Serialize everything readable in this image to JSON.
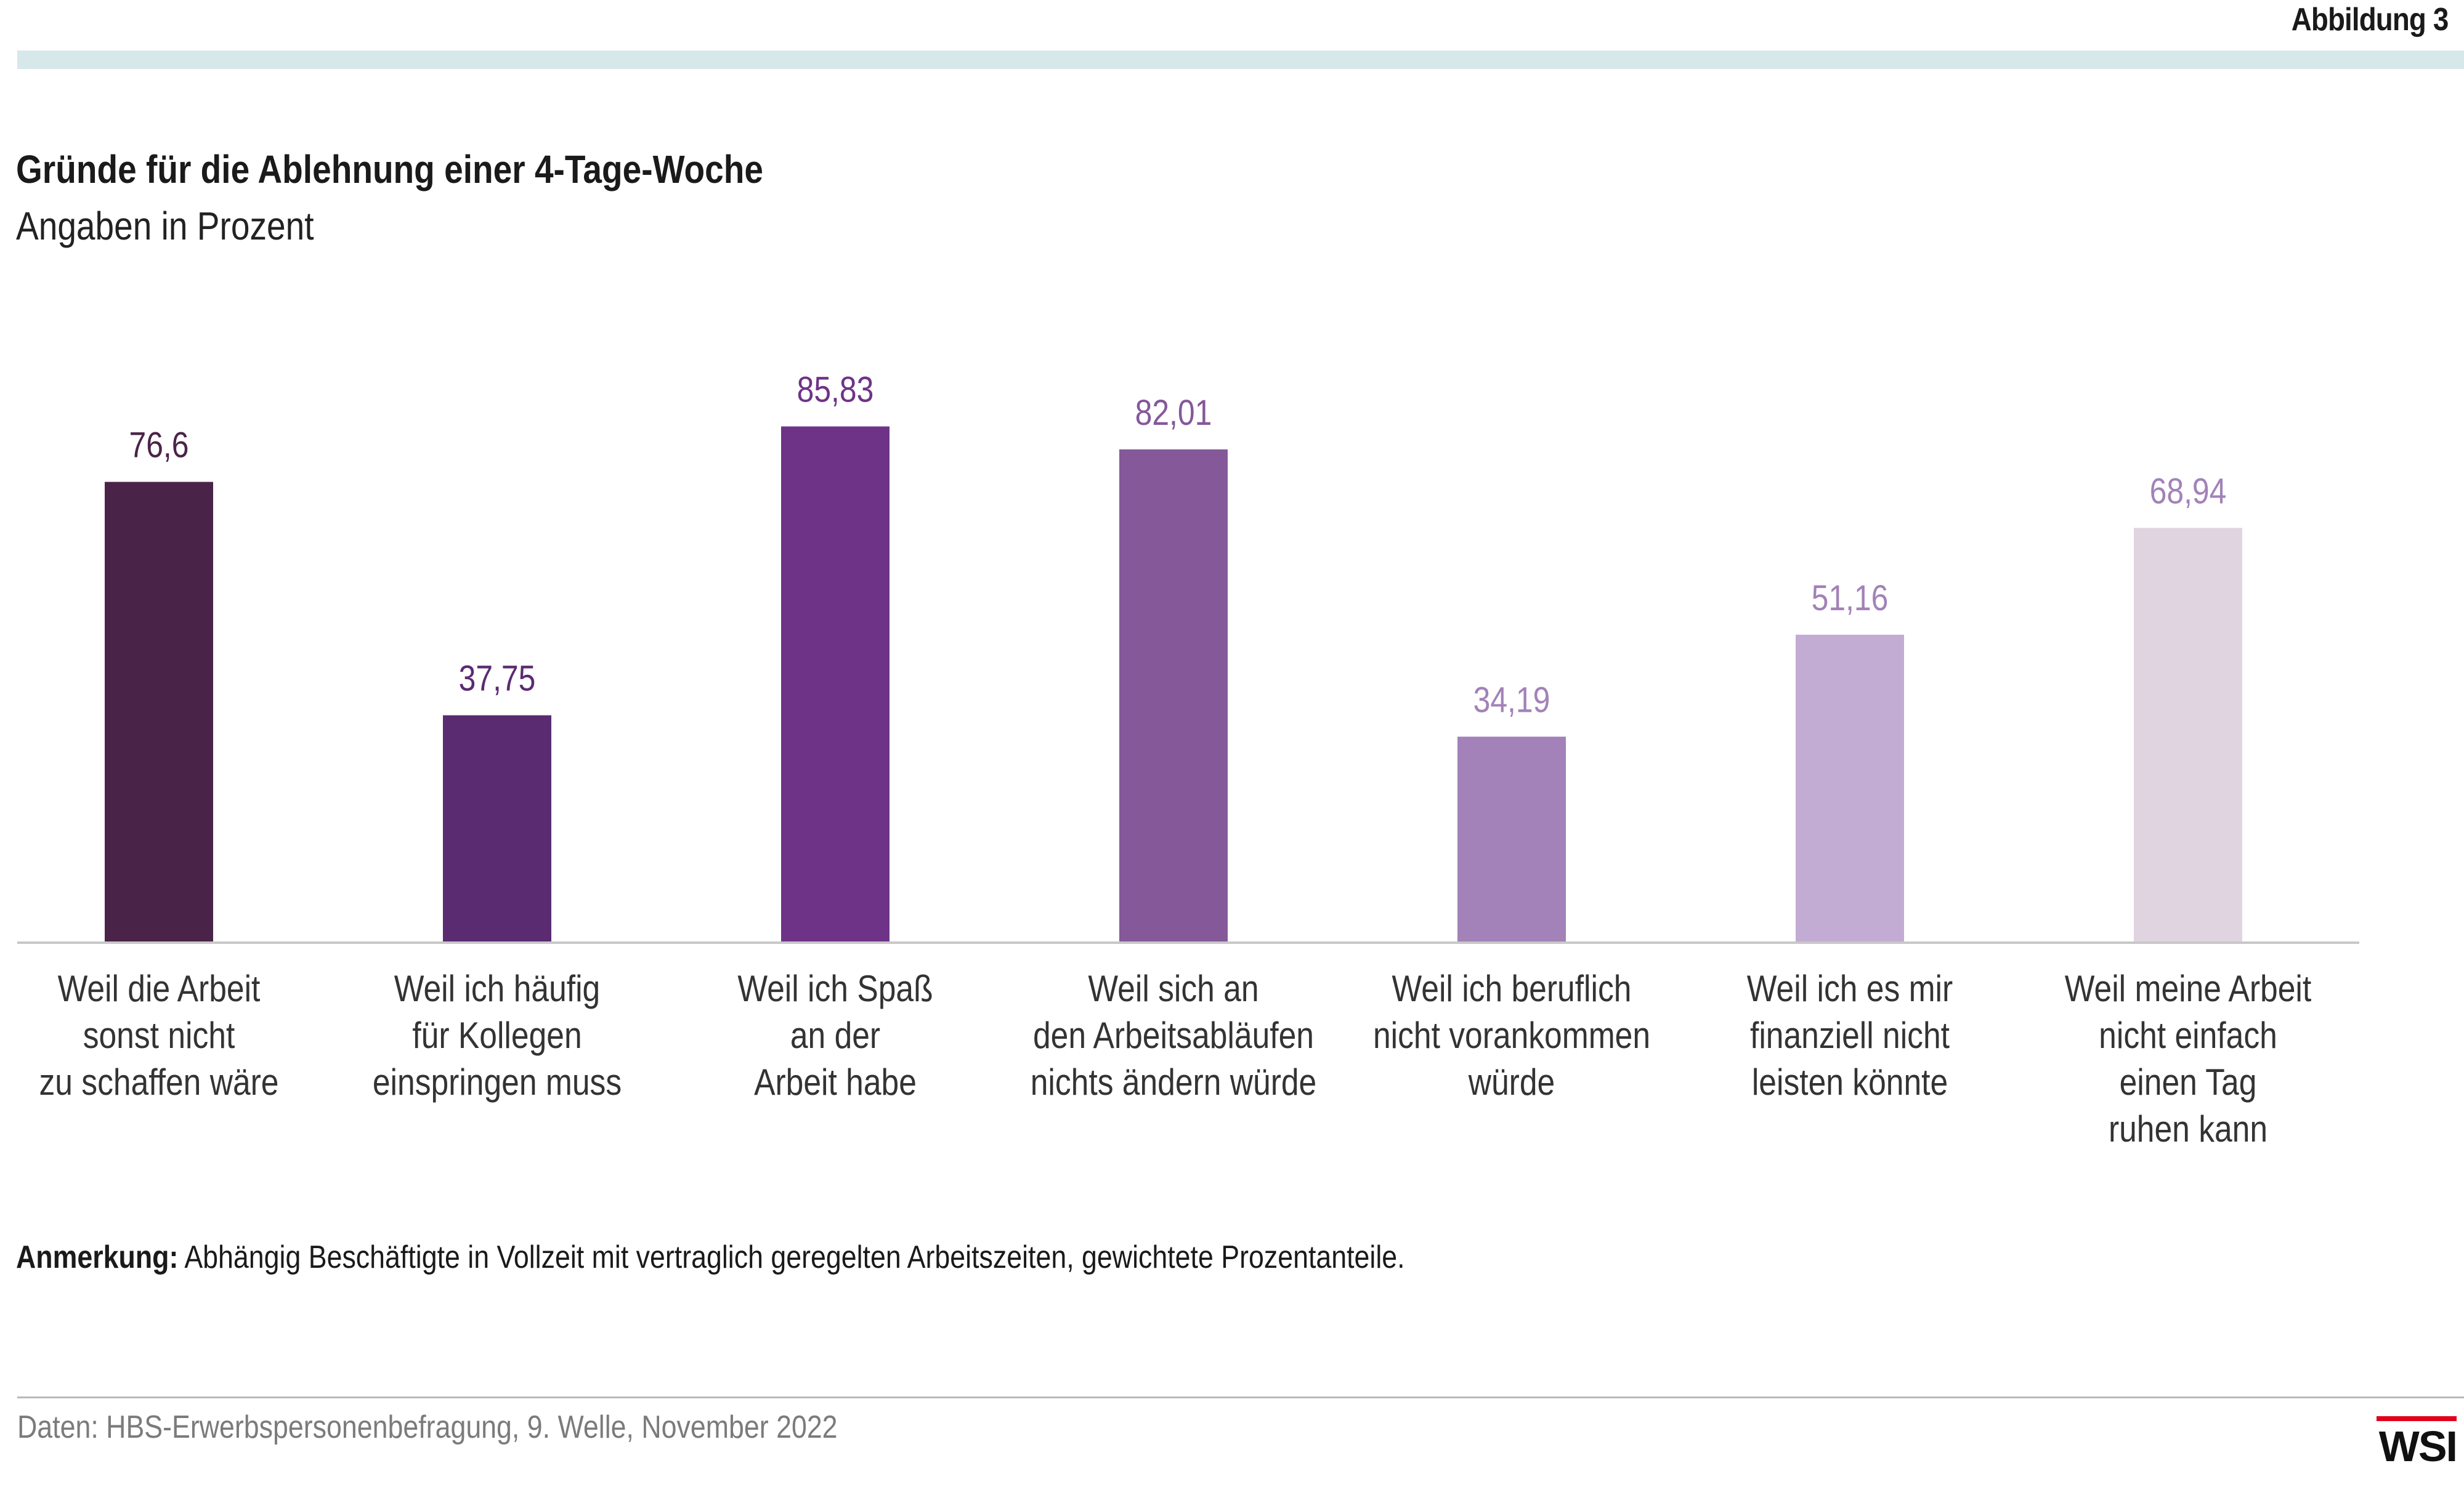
{
  "header": {
    "figure_label": "Abbildung 3"
  },
  "colors": {
    "top_rule": "#d7e8ea",
    "axis_line": "#c8c8c8",
    "logo_accent": "#e1001a",
    "bars": [
      "#4a2448",
      "#5b2b72",
      "#6e3387",
      "#845899",
      "#a282b8",
      "#c3acd3",
      "#e1d4e1"
    ]
  },
  "chart_data": {
    "type": "bar",
    "title": "Gründe für die Ablehnung einer 4-Tage-Woche",
    "subtitle": "Angaben in Prozent",
    "categories": [
      [
        "Weil die Arbeit",
        "sonst nicht",
        "zu schaffen wäre"
      ],
      [
        "Weil ich häufig",
        "für Kollegen",
        "einspringen muss"
      ],
      [
        "Weil ich Spaß",
        "an der",
        "Arbeit habe"
      ],
      [
        "Weil sich an",
        "den Arbeitsabläufen",
        "nichts ändern würde"
      ],
      [
        "Weil ich beruflich",
        "nicht vorankommen",
        "würde"
      ],
      [
        "Weil ich es mir",
        "finanziell nicht",
        "leisten könnte"
      ],
      [
        "Weil meine Arbeit",
        "nicht einfach",
        "einen Tag",
        "ruhen kann"
      ]
    ],
    "values": [
      76.6,
      37.75,
      85.83,
      82.01,
      34.19,
      51.16,
      68.94
    ],
    "value_labels": [
      "76,6",
      "37,75",
      "85,83",
      "82,01",
      "34,19",
      "51,16",
      "68,94"
    ],
    "label_colors": [
      "#4a2448",
      "#5b2b72",
      "#6e3387",
      "#845899",
      "#a282b8",
      "#a282b8",
      "#a282b8"
    ],
    "ylim": [
      0,
      100
    ],
    "grid": false,
    "legend": "none"
  },
  "footer": {
    "note_label": "Anmerkung:",
    "note_text": " Abhängig Beschäftigte in Vollzeit mit vertraglich geregelten Arbeitszeiten, gewichtete Prozentanteile.",
    "source": "Daten: HBS-Erwerbspersonenbefragung, 9. Welle, November 2022",
    "logo_text": "WSI"
  }
}
